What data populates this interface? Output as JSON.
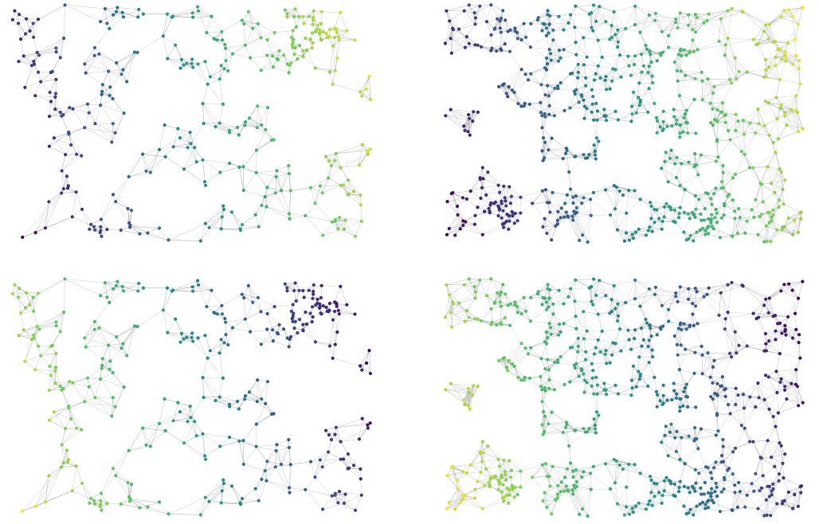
{
  "figure": {
    "panels": [
      {
        "id": "top-left",
        "row": 0,
        "col": 0,
        "nodes": 360,
        "k": 5,
        "color_gradient": "left-to-right",
        "reverse": false,
        "seed": 11
      },
      {
        "id": "top-right",
        "row": 0,
        "col": 1,
        "nodes": 720,
        "k": 7,
        "color_gradient": "left-to-right",
        "reverse": false,
        "seed": 23
      },
      {
        "id": "bottom-left",
        "row": 1,
        "col": 0,
        "nodes": 360,
        "k": 5,
        "color_gradient": "left-to-right",
        "reverse": true,
        "seed": 11
      },
      {
        "id": "bottom-right",
        "row": 1,
        "col": 1,
        "nodes": 720,
        "k": 7,
        "color_gradient": "left-to-right",
        "reverse": true,
        "seed": 23
      }
    ],
    "colormap": "viridis",
    "colormap_stops": [
      "#440154",
      "#3b528b",
      "#21918c",
      "#5ec962",
      "#fde725"
    ],
    "edge_color": "#9a9a9a",
    "background": "#ffffff"
  }
}
